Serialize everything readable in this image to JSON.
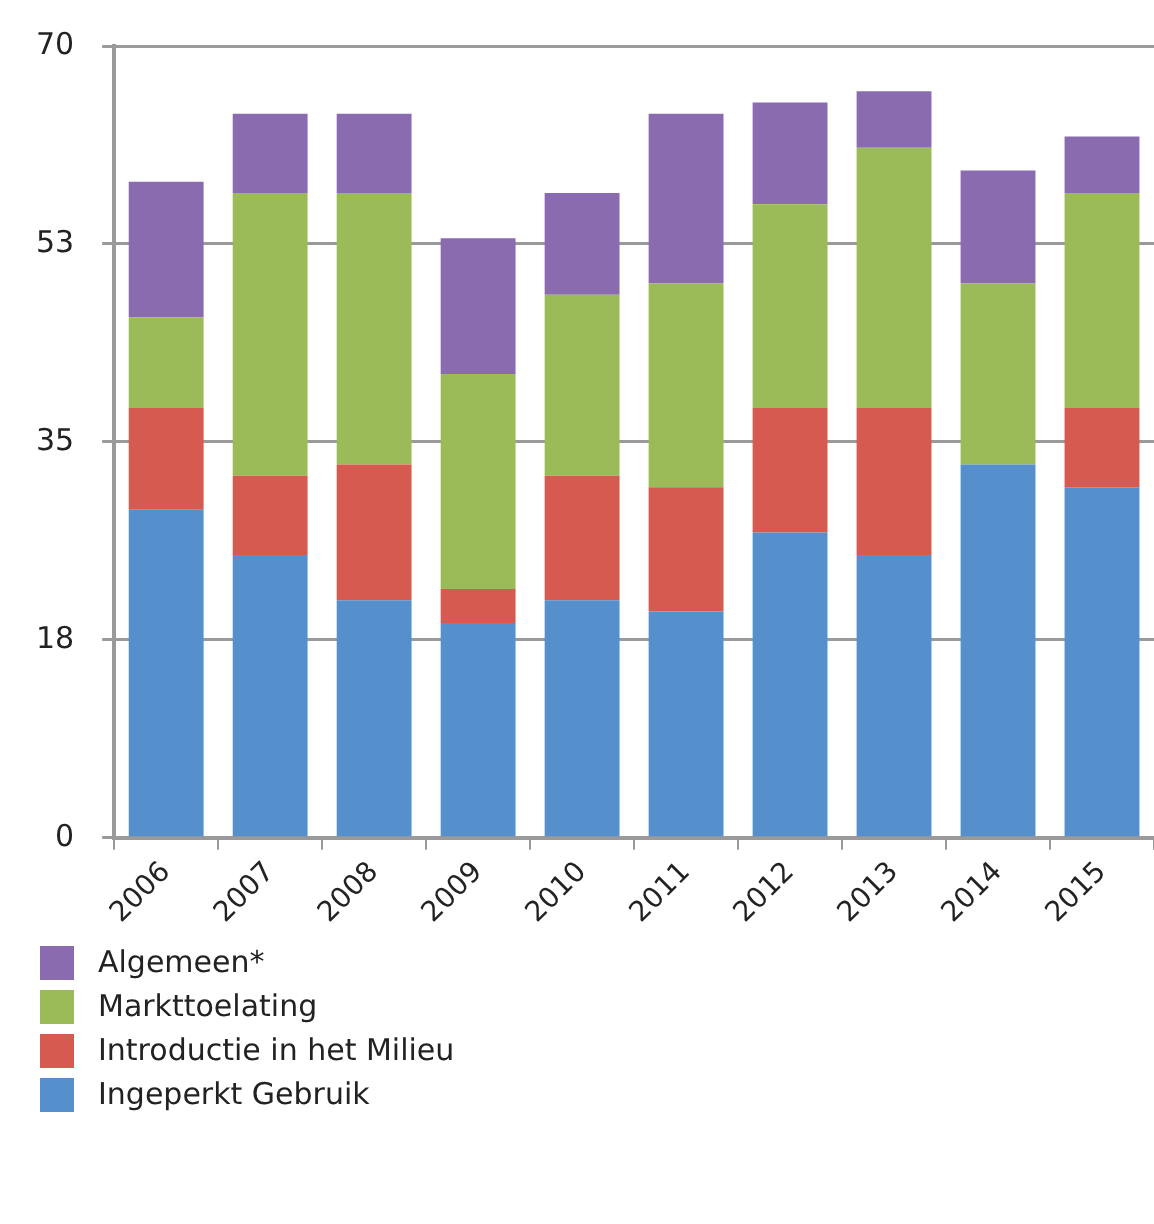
{
  "chart_data": {
    "type": "bar",
    "stacked": true,
    "categories": [
      "2006",
      "2007",
      "2008",
      "2009",
      "2010",
      "2011",
      "2012",
      "2013",
      "2014",
      "2015"
    ],
    "series": [
      {
        "name": "Ingeperkt Gebruik",
        "color": "#5590cc",
        "values": [
          29,
          25,
          21,
          19,
          21,
          20,
          27,
          25,
          33,
          31
        ]
      },
      {
        "name": "Introductie in het Milieu",
        "color": "#d65a4f",
        "values": [
          9,
          7,
          12,
          3,
          11,
          11,
          11,
          13,
          0,
          7
        ]
      },
      {
        "name": "Markttoelating",
        "color": "#9bbb59",
        "values": [
          8,
          25,
          24,
          19,
          16,
          18,
          18,
          23,
          16,
          19
        ]
      },
      {
        "name": "Algemeen*",
        "color": "#8a6bb0",
        "values": [
          12,
          7,
          7,
          12,
          9,
          15,
          9,
          5,
          10,
          5
        ]
      }
    ],
    "ylim": [
      0,
      70
    ],
    "yticks": [
      0,
      {
        "value": 17.5,
        "label": "18"
      },
      35,
      {
        "value": 52.5,
        "label": "53"
      },
      70
    ],
    "grid": "y",
    "legend": "bottom left"
  }
}
